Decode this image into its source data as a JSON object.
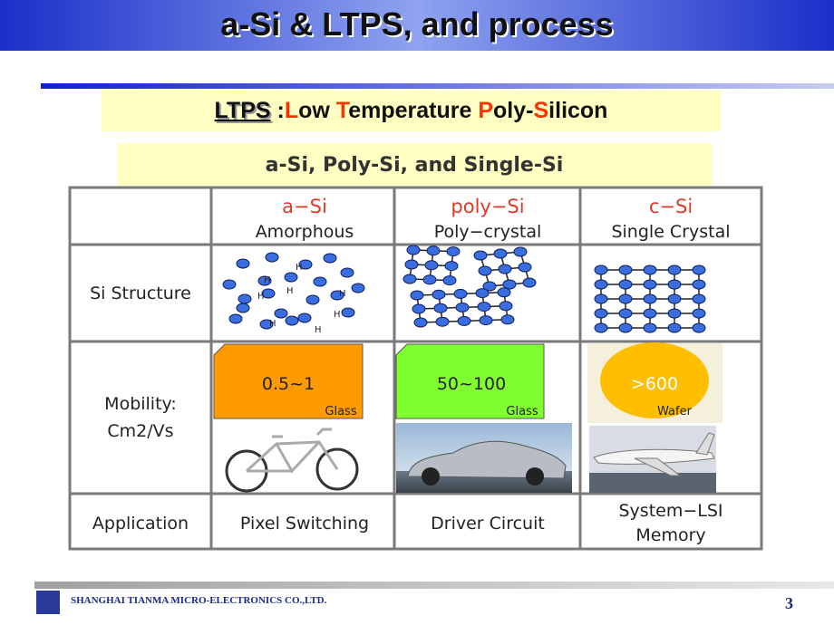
{
  "header": {
    "title": "a-Si & LTPS, and process"
  },
  "subtitle": {
    "acronym": "LTPS",
    "separator": ":",
    "parts": [
      "L",
      "ow ",
      "T",
      "emperature ",
      "P",
      "oly-",
      "S",
      "ilicon"
    ]
  },
  "table": {
    "heading": "a-Si, Poly-Si, and Single-Si",
    "columns": [
      {
        "name": "a−Si",
        "subname": "Amorphous"
      },
      {
        "name": "poly−Si",
        "subname": "Poly−crystal"
      },
      {
        "name": "c−Si",
        "subname": "Single Crystal"
      }
    ],
    "structure_label": "Si Structure",
    "hydrogen_label": "H",
    "mobility_label": [
      "Mobility:",
      "Cm2/Vs"
    ],
    "mobility": [
      {
        "value": "0.5~1",
        "substrate": "Glass"
      },
      {
        "value": "50~100",
        "substrate": "Glass"
      },
      {
        "value": ">600",
        "substrate": "Wafer"
      }
    ],
    "application_label": "Application",
    "applications": [
      [
        "Pixel Switching"
      ],
      [
        "Driver Circuit"
      ],
      [
        "System−LSI",
        "Memory"
      ]
    ]
  },
  "footer": {
    "company": "SHANGHAI TIANMA MICRO-ELECTRONICS CO.,LTD.",
    "page": "3"
  }
}
